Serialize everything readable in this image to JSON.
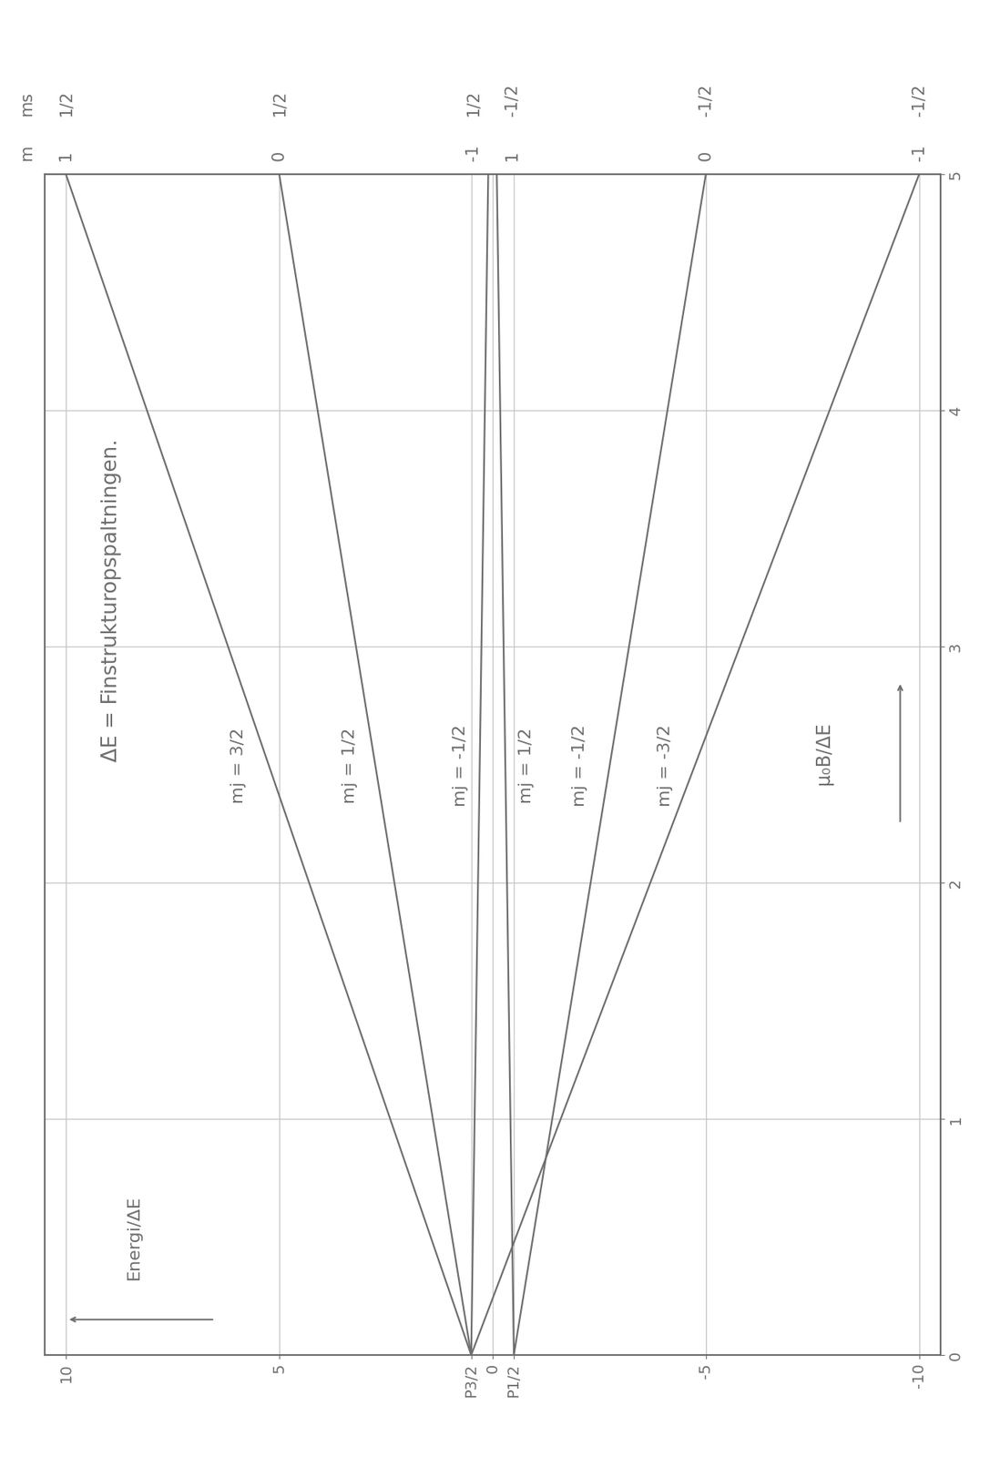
{
  "chart_data": {
    "type": "line",
    "title": "ΔE = Finstrukturopspaltningen.",
    "x_label": "μ₀B/ΔE",
    "y_label": "Energi/ΔE",
    "x": [
      0,
      5
    ],
    "xlim": [
      0,
      5
    ],
    "xticks": [
      0,
      1,
      2,
      3,
      4,
      5
    ],
    "ylim": [
      -10.5,
      10.5
    ],
    "yticks": [
      -10,
      -5,
      {
        "value": -0.5,
        "label": "P1/2"
      },
      0,
      {
        "value": 0.5,
        "label": "P3/2"
      },
      5,
      10
    ],
    "grid": true,
    "color": "#6e6e6e",
    "line_style": "solid",
    "column_headers": [
      "m",
      "ms"
    ],
    "series": [
      {
        "name": "mj = 3/2",
        "values": [
          0.5,
          10
        ],
        "m": 1,
        "ms": "1/2"
      },
      {
        "name": "mj = 1/2",
        "values": [
          0.5,
          5
        ],
        "m": 0,
        "ms": "1/2"
      },
      {
        "name": "mj = -1/2",
        "values": [
          0.5,
          0.1
        ],
        "m": -1,
        "ms": "1/2"
      },
      {
        "name": "mj = 1/2",
        "values": [
          -0.5,
          -0.1
        ],
        "m": 1,
        "ms": "-1/2"
      },
      {
        "name": "mj = -1/2",
        "values": [
          -0.5,
          -5
        ],
        "m": 0,
        "ms": "-1/2"
      },
      {
        "name": "mj = -3/2",
        "values": [
          0.5,
          -10
        ],
        "m": -1,
        "ms": "-1/2"
      }
    ]
  }
}
